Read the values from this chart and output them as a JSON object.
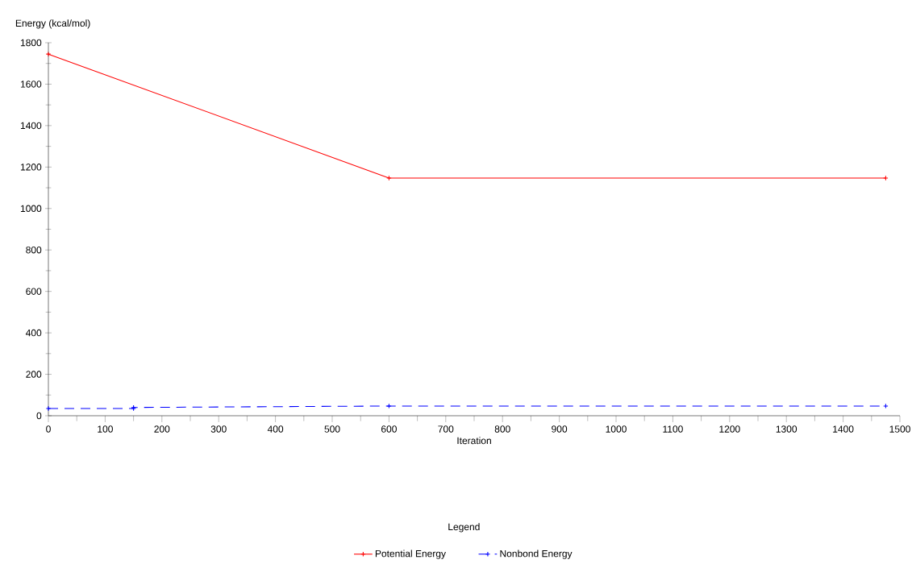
{
  "chart_data": {
    "type": "line",
    "xlabel": "Iteration",
    "ylabel": "Energy (kcal/mol)",
    "legend_title": "Legend",
    "xlim": [
      0,
      1500
    ],
    "ylim": [
      0,
      1800
    ],
    "xticks": [
      0,
      100,
      200,
      300,
      400,
      500,
      600,
      700,
      800,
      900,
      1000,
      1100,
      1200,
      1300,
      1400,
      1500
    ],
    "yticks": [
      0,
      200,
      400,
      600,
      800,
      1000,
      1200,
      1400,
      1600,
      1800
    ],
    "legend": "bottom",
    "grid": false,
    "marker": "cross",
    "series": [
      {
        "name": "Potential Energy",
        "color": "#ff0000",
        "line_style": "solid",
        "x": [
          0,
          600,
          1475
        ],
        "values": [
          1745,
          1147,
          1147
        ]
      },
      {
        "name": "Nonbond Energy",
        "color": "#0000ff",
        "line_style": "dashed",
        "x": [
          0,
          150,
          150,
          600,
          1475
        ],
        "values": [
          35,
          35,
          40,
          47,
          47
        ]
      }
    ]
  }
}
